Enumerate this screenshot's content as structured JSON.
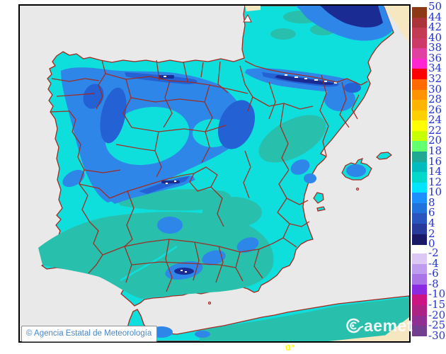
{
  "legend": {
    "label_color": "#2433CF",
    "upper": {
      "labels": [
        50,
        44,
        42,
        40,
        38,
        36,
        34,
        32,
        30,
        28,
        26,
        24,
        22,
        20,
        18,
        16,
        14,
        12,
        10,
        8,
        6,
        4,
        2,
        0
      ],
      "colors": [
        "#8C3A16",
        "#A93439",
        "#C23B52",
        "#CE3A68",
        "#E040A0",
        "#FF26D0",
        "#FF0000",
        "#FF6A00",
        "#FF9400",
        "#FFB400",
        "#FFD000",
        "#FFFF00",
        "#C8FF00",
        "#64FF6E",
        "#1FA893",
        "#00BCBE",
        "#00D8CC",
        "#00E4FF",
        "#1E8FFF",
        "#2272DC",
        "#2A55BE",
        "#283A9C",
        "#191968"
      ]
    },
    "lower": {
      "labels": [
        -2,
        -4,
        -6,
        -8,
        -10,
        -15,
        -20,
        -25,
        -30
      ],
      "colors": [
        "#DCC8F4",
        "#BE9CEE",
        "#A974E6",
        "#8A2BE2",
        "#CC1483",
        "#AC2384",
        "#8F2F92",
        "#723E90"
      ]
    }
  },
  "map": {
    "attribution": "© Agencia Estatal de Meteorología",
    "meridian_label": "0°",
    "logo_text": "aemet",
    "colors": {
      "sea": "#E9E9E9",
      "outside_domain": "#F6E7C0",
      "border": "#A3281E",
      "temp_12_14": "#0EDFDC",
      "temp_14_16": "#28BFAC",
      "temp_8_10": "#2E87E8",
      "temp_6_8": "#2361D4",
      "temp_2_4": "#1B2B94",
      "snow": "#FFFFFF",
      "attribution_text": "#4A86C8",
      "meridian_text": "#FFFF00",
      "logo_color": "#FFFFFF"
    }
  }
}
